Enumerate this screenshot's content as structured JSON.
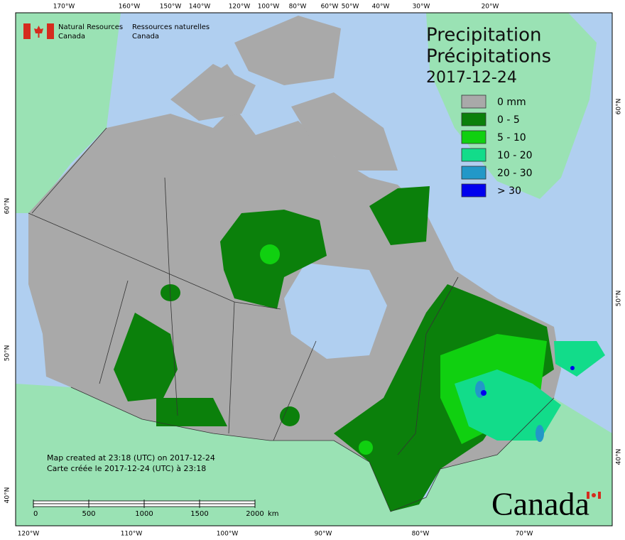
{
  "header": {
    "department_en": [
      "Natural Resources",
      "Canada"
    ],
    "department_fr": [
      "Ressources naturelles",
      "Canada"
    ]
  },
  "title": {
    "lines": [
      "Precipitation",
      "Précipitations"
    ],
    "date": "2017-12-24"
  },
  "legend": [
    {
      "label": "0 mm",
      "color": "#a9a9a9"
    },
    {
      "label": "0 - 5",
      "color": "#0b800b"
    },
    {
      "label": "5 - 10",
      "color": "#10d010"
    },
    {
      "label": "10 - 20",
      "color": "#12dc8a"
    },
    {
      "label": "20 - 30",
      "color": "#2298c8"
    },
    {
      "label": "> 30",
      "color": "#0000ee"
    }
  ],
  "graticule": {
    "top": [
      "170°W",
      "160°W",
      "150°W",
      "140°W",
      "120°W",
      "100°W",
      "80°W",
      "60°W",
      "50°W",
      "40°W",
      "30°W",
      "20°W"
    ],
    "bottom": [
      "120°W",
      "110°W",
      "100°W",
      "90°W",
      "80°W",
      "70°W"
    ],
    "left": [
      "60°N",
      "50°N",
      "40°N"
    ],
    "right": [
      "60°N",
      "50°N",
      "40°N"
    ]
  },
  "footer": [
    "Map created at 23:18 (UTC) on 2017-12-24",
    "Carte créée le 2017-12-24 (UTC) à 23:18"
  ],
  "scale_bar": {
    "ticks": [
      0,
      500,
      1000,
      1500,
      2000
    ],
    "unit": "km"
  },
  "wordmark": "Canada"
}
